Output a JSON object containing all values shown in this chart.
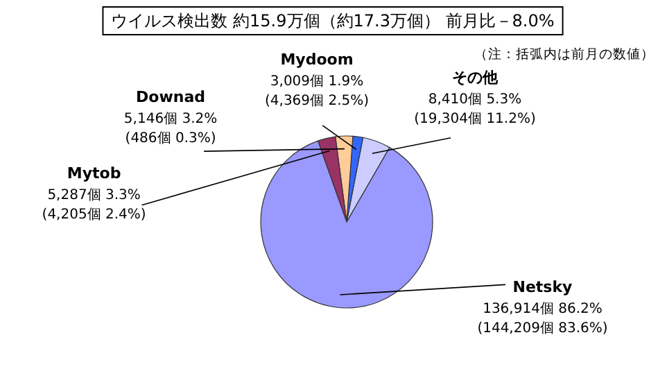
{
  "chart_data": {
    "type": "pie",
    "title": "ウイルス検出数  約15.9万個（約17.3万個）  前月比－8.0%",
    "subtitle": "（注：括弧内は前月の数値）",
    "categories": [
      "その他",
      "Mydoom",
      "Downad",
      "Mytob",
      "Netsky"
    ],
    "values": [
      8410,
      3009,
      5146,
      5287,
      136914
    ],
    "colors": [
      "#ccccff",
      "#3366ff",
      "#ffcc99",
      "#993366",
      "#9999ff"
    ],
    "value_labels": [
      "8,410個 5.3%\n(19,304個 11.2%)",
      "3,009個 1.9%\n(4,369個 2.5%)",
      "5,146個 3.2%\n(486個 0.3%)",
      "5,287個 3.3%\n(4,205個 2.4%)",
      "136,914個 86.2%\n(144,209個 83.6%)"
    ],
    "legend": false
  }
}
